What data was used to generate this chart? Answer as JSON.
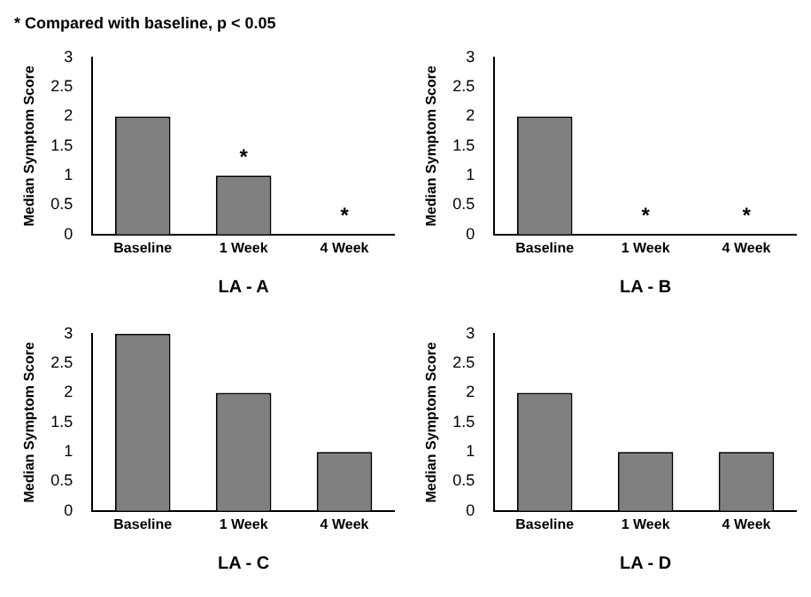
{
  "chart_data": [
    {
      "type": "bar",
      "xlabel": "LA - A",
      "ylabel": "Median Symptom Score",
      "categories": [
        "Baseline",
        "1 Week",
        "4 Week"
      ],
      "values": [
        2,
        1,
        0
      ],
      "color": "#808080",
      "ylim": [
        0,
        3
      ],
      "yticks": [
        0,
        0.5,
        1,
        1.5,
        2,
        2.5,
        3
      ],
      "grid": false,
      "legend": false,
      "annotations": [
        "* Compared with baseline, p < 0.05",
        {
          "text": "*",
          "x": "1 Week",
          "y": 1
        },
        {
          "text": "*",
          "x": "4 Week",
          "y": 0
        }
      ]
    },
    {
      "type": "bar",
      "xlabel": "LA - B",
      "ylabel": "Median Symptom Score",
      "categories": [
        "Baseline",
        "1 Week",
        "4 Week"
      ],
      "values": [
        2,
        0,
        0
      ],
      "color": "#808080",
      "ylim": [
        0,
        3
      ],
      "yticks": [
        0,
        0.5,
        1,
        1.5,
        2,
        2.5,
        3
      ],
      "grid": false,
      "legend": false,
      "annotations": [
        {
          "text": "*",
          "x": "1 Week",
          "y": 0
        },
        {
          "text": "*",
          "x": "4 Week",
          "y": 0
        }
      ]
    },
    {
      "type": "bar",
      "xlabel": "LA - C",
      "ylabel": "Median Symptom Score",
      "categories": [
        "Baseline",
        "1 Week",
        "4 Week"
      ],
      "values": [
        3,
        2,
        1
      ],
      "color": "#808080",
      "ylim": [
        0,
        3
      ],
      "yticks": [
        0,
        0.5,
        1,
        1.5,
        2,
        2.5,
        3
      ],
      "grid": false,
      "legend": false
    },
    {
      "type": "bar",
      "xlabel": "LA - D",
      "ylabel": "Median Symptom Score",
      "categories": [
        "Baseline",
        "1 Week",
        "4 Week"
      ],
      "values": [
        2,
        1,
        1
      ],
      "color": "#808080",
      "ylim": [
        0,
        3
      ],
      "yticks": [
        0,
        0.5,
        1,
        1.5,
        2,
        2.5,
        3
      ],
      "grid": false,
      "legend": false
    }
  ]
}
